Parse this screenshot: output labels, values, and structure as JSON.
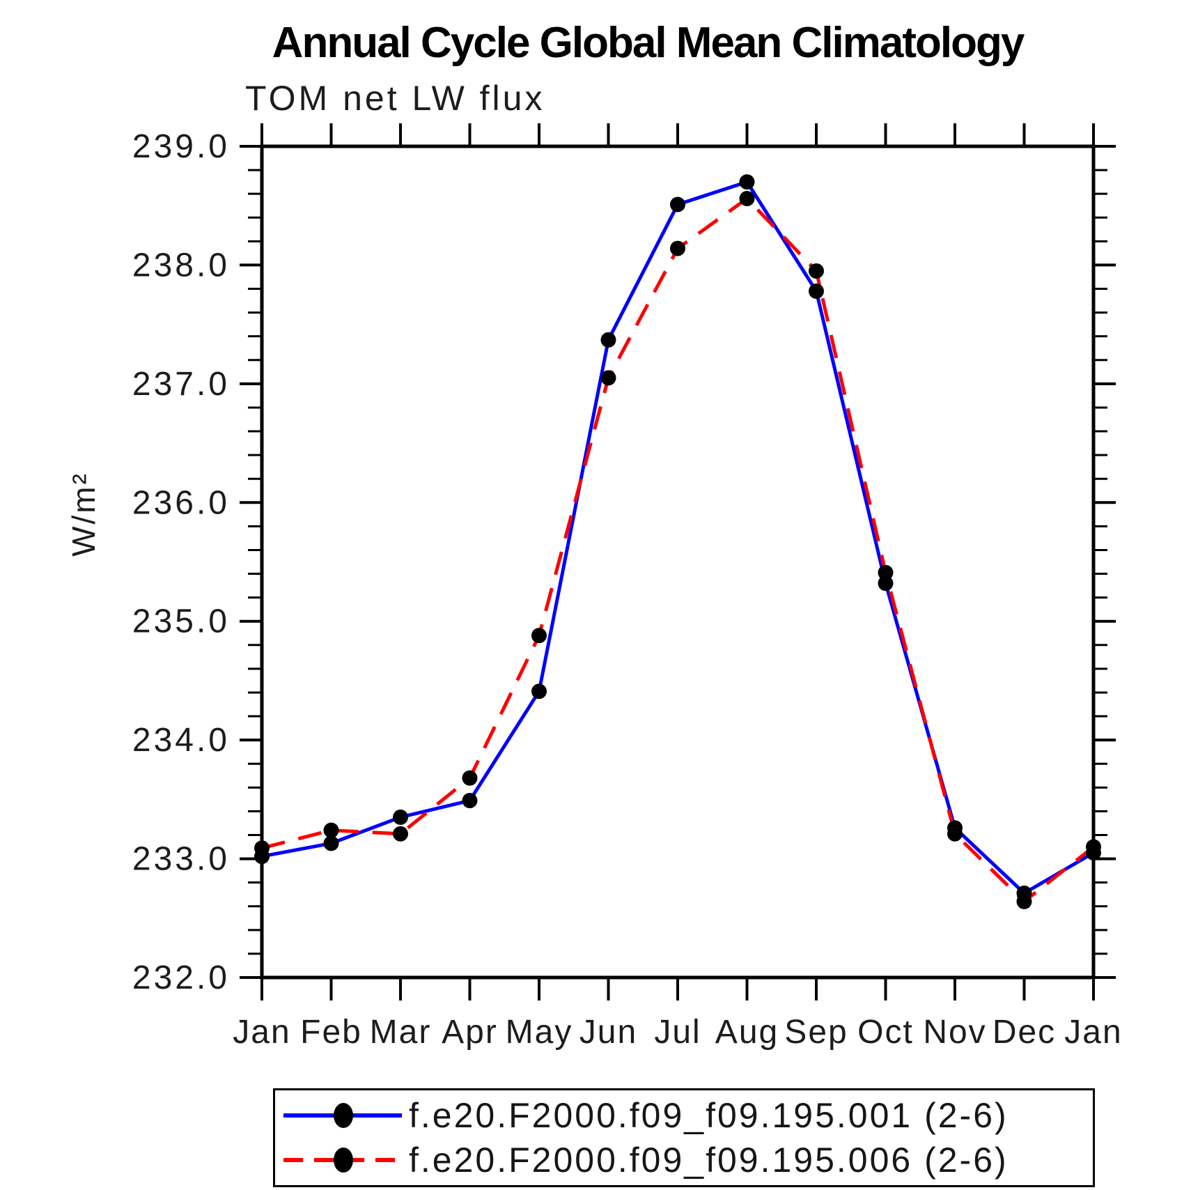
{
  "chart_data": {
    "type": "line",
    "title": "Annual Cycle Global Mean Climatology",
    "subtitle": "TOM net LW flux",
    "ylabel": "W/m²",
    "xlabel": "",
    "ylim": [
      232.0,
      239.0
    ],
    "minor_tick_step": 0.2,
    "grid": false,
    "legend_position": "bottom",
    "x_categories": [
      "Jan",
      "Feb",
      "Mar",
      "Apr",
      "May",
      "Jun",
      "Jul",
      "Aug",
      "Sep",
      "Oct",
      "Nov",
      "Dec",
      "Jan"
    ],
    "y_tick_labels": [
      "232.0",
      "233.0",
      "234.0",
      "235.0",
      "236.0",
      "237.0",
      "238.0",
      "239.0"
    ],
    "axis_color": "#000000",
    "marker_color": "#000000",
    "series": [
      {
        "name": "f.e20.F2000.f09_f09.195.001 (2-6)",
        "color": "#0000ff",
        "style": "solid",
        "marker": "filled-circle",
        "values": [
          233.02,
          233.13,
          233.35,
          233.49,
          234.41,
          237.37,
          238.51,
          238.7,
          237.78,
          235.32,
          233.26,
          232.71,
          233.05
        ]
      },
      {
        "name": "f.e20.F2000.f09_f09.195.006 (2-6)",
        "color": "#ff0000",
        "style": "dashed",
        "marker": "filled-circle",
        "values": [
          233.09,
          233.24,
          233.21,
          233.68,
          234.88,
          237.05,
          238.14,
          238.56,
          237.95,
          235.41,
          233.21,
          232.64,
          233.1
        ]
      }
    ]
  }
}
